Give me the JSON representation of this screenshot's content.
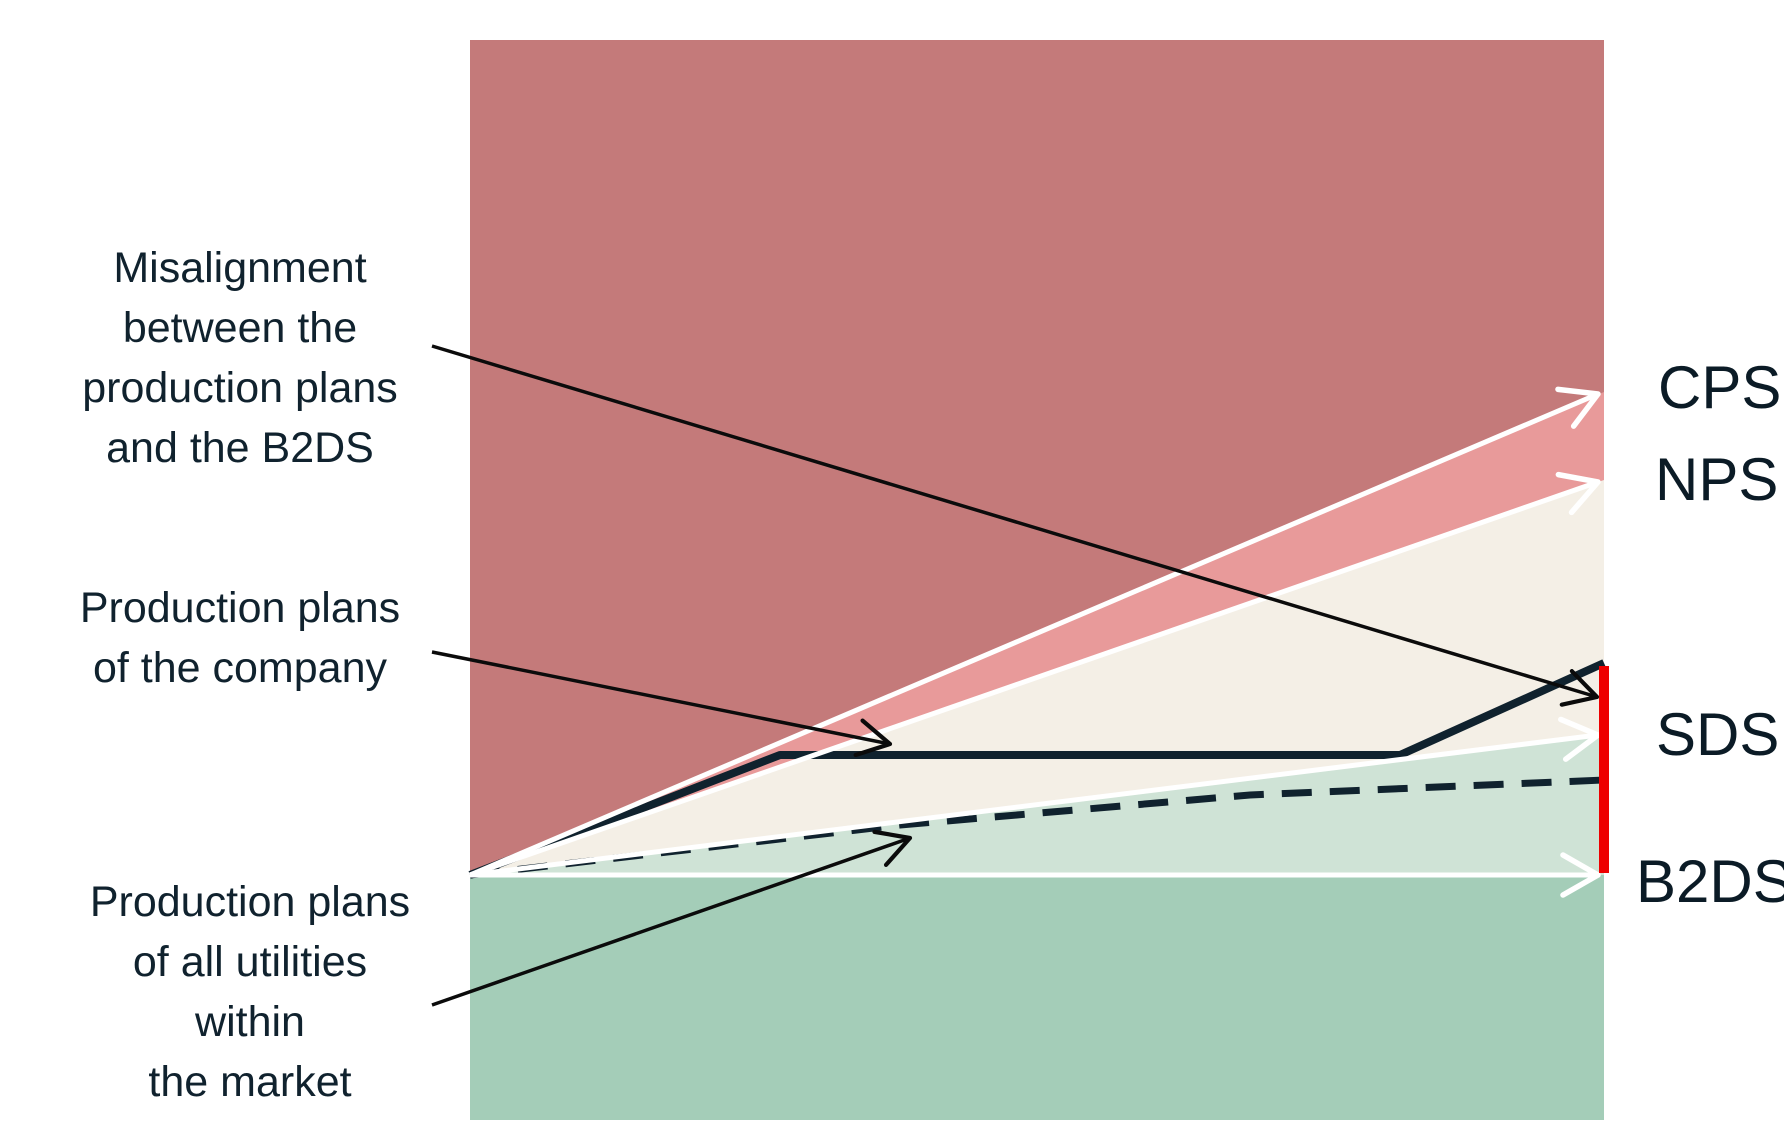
{
  "scenarios": {
    "cps": "CPS",
    "nps": "NPS",
    "sds": "SDS",
    "b2ds": "B2DS"
  },
  "annotations": {
    "misalignment": [
      "Misalignment",
      "between the",
      "production plans",
      "and the B2DS"
    ],
    "company": [
      "Production plans",
      "of the company"
    ],
    "utilities": [
      "Production plans",
      "of all utilities",
      "within",
      "the market"
    ]
  },
  "colors": {
    "above_cps": "#c47a7a",
    "cps_to_nps": "#e89a9a",
    "nps_to_sds": "#f4efe6",
    "sds_to_b2ds": "#cfe3d6",
    "below_b2ds": "#a4cdb8",
    "misalignment_bar": "#ee0000",
    "company_line": "#10222e",
    "scenario_arrows": "#ffffff"
  }
}
